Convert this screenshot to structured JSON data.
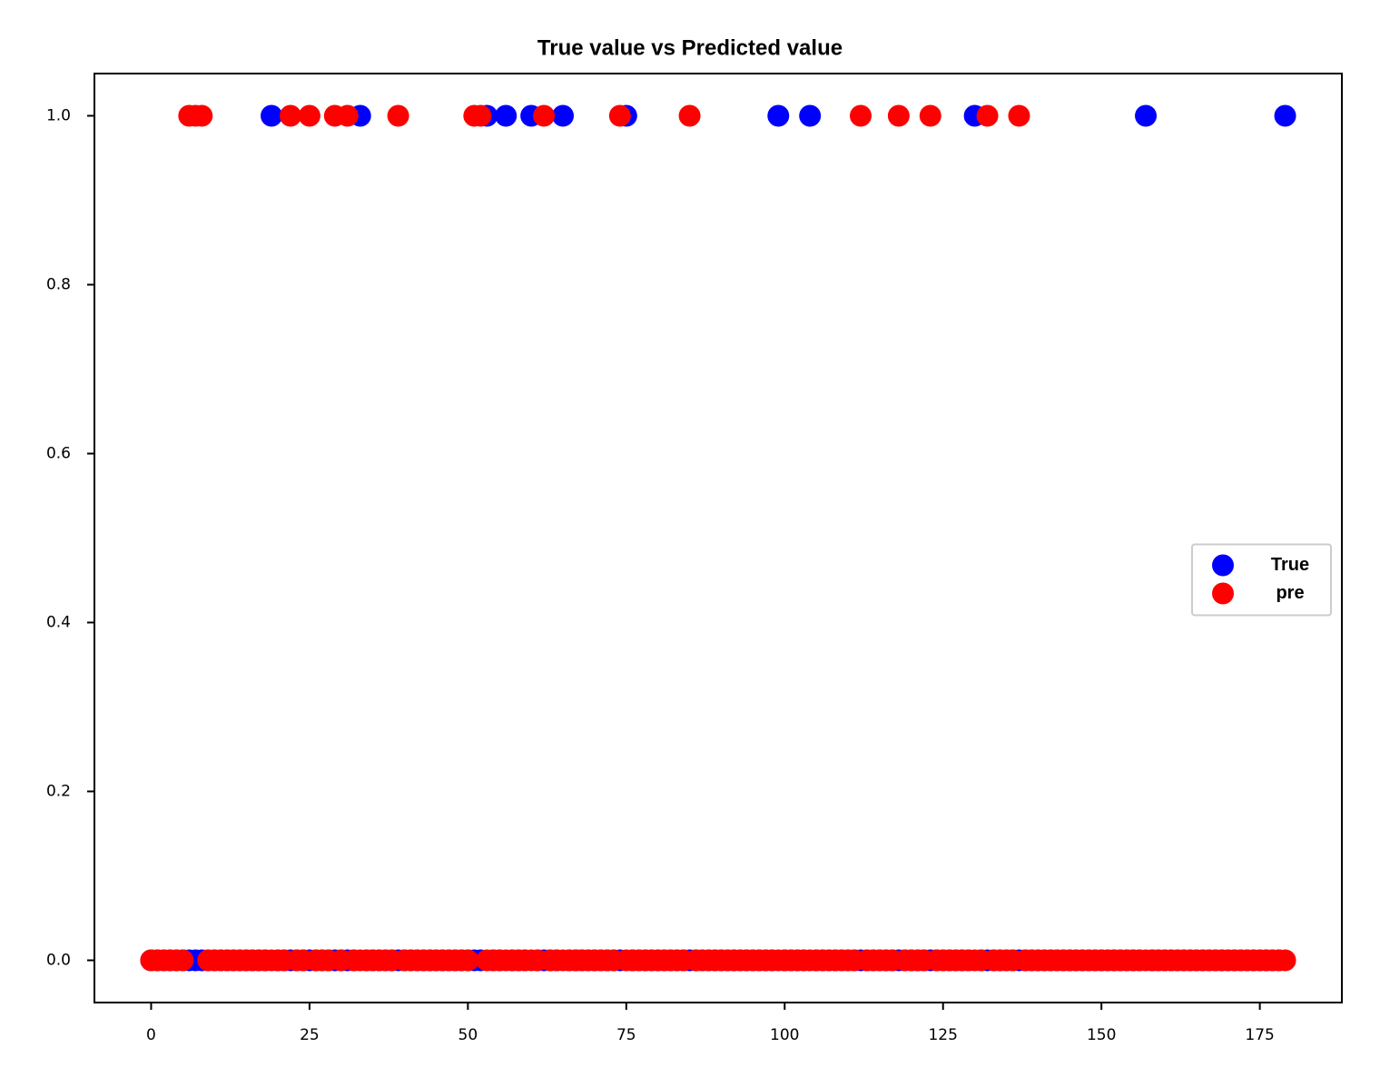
{
  "chart_data": {
    "type": "scatter",
    "title": "True value vs Predicted value",
    "x": [
      0,
      1,
      2,
      3,
      4,
      5,
      6,
      7,
      8,
      9,
      10,
      11,
      12,
      13,
      14,
      15,
      16,
      17,
      18,
      19,
      20,
      21,
      22,
      23,
      24,
      25,
      26,
      27,
      28,
      29,
      30,
      31,
      32,
      33,
      34,
      35,
      36,
      37,
      38,
      39,
      40,
      41,
      42,
      43,
      44,
      45,
      46,
      47,
      48,
      49,
      50,
      51,
      52,
      53,
      54,
      55,
      56,
      57,
      58,
      59,
      60,
      61,
      62,
      63,
      64,
      65,
      66,
      67,
      68,
      69,
      70,
      71,
      72,
      73,
      74,
      75,
      76,
      77,
      78,
      79,
      80,
      81,
      82,
      83,
      84,
      85,
      86,
      87,
      88,
      89,
      90,
      91,
      92,
      93,
      94,
      95,
      96,
      97,
      98,
      99,
      100,
      101,
      102,
      103,
      104,
      105,
      106,
      107,
      108,
      109,
      110,
      111,
      112,
      113,
      114,
      115,
      116,
      117,
      118,
      119,
      120,
      121,
      122,
      123,
      124,
      125,
      126,
      127,
      128,
      129,
      130,
      131,
      132,
      133,
      134,
      135,
      136,
      137,
      138,
      139,
      140,
      141,
      142,
      143,
      144,
      145,
      146,
      147,
      148,
      149,
      150,
      151,
      152,
      153,
      154,
      155,
      156,
      157,
      158,
      159,
      160,
      161,
      162,
      163,
      164,
      165,
      166,
      167,
      168,
      169,
      170,
      171,
      172,
      173,
      174,
      175,
      176,
      177,
      178,
      179
    ],
    "series": [
      {
        "name": "True",
        "color": "#0000ff",
        "values": [
          0,
          0,
          0,
          0,
          0,
          0,
          0,
          0,
          0,
          0,
          0,
          0,
          0,
          0,
          0,
          0,
          0,
          0,
          0,
          1,
          0,
          0,
          0,
          0,
          0,
          0,
          0,
          0,
          0,
          0,
          0,
          0,
          0,
          1,
          0,
          0,
          0,
          0,
          0,
          0,
          0,
          0,
          0,
          0,
          0,
          0,
          0,
          0,
          0,
          0,
          0,
          0,
          0,
          1,
          0,
          0,
          1,
          0,
          0,
          0,
          1,
          0,
          0,
          0,
          0,
          1,
          0,
          0,
          0,
          0,
          0,
          0,
          0,
          0,
          0,
          1,
          0,
          0,
          0,
          0,
          0,
          0,
          0,
          0,
          0,
          0,
          0,
          0,
          0,
          0,
          0,
          0,
          0,
          0,
          0,
          0,
          0,
          0,
          0,
          1,
          0,
          0,
          0,
          0,
          1,
          0,
          0,
          0,
          0,
          0,
          0,
          0,
          0,
          0,
          0,
          0,
          0,
          0,
          0,
          0,
          0,
          0,
          0,
          0,
          0,
          0,
          0,
          0,
          0,
          0,
          1,
          0,
          0,
          0,
          0,
          0,
          0,
          0,
          0,
          0,
          0,
          0,
          0,
          0,
          0,
          0,
          0,
          0,
          0,
          0,
          0,
          0,
          0,
          0,
          0,
          0,
          0,
          1,
          0,
          0,
          0,
          0,
          0,
          0,
          0,
          0,
          0,
          0,
          0,
          0,
          0,
          0,
          0,
          0,
          0,
          0,
          0,
          0,
          0,
          1
        ]
      },
      {
        "name": "pre",
        "color": "#ff0000",
        "values": [
          0,
          0,
          0,
          0,
          0,
          0,
          1,
          1,
          1,
          0,
          0,
          0,
          0,
          0,
          0,
          0,
          0,
          0,
          0,
          0,
          0,
          0,
          1,
          0,
          0,
          1,
          0,
          0,
          0,
          1,
          0,
          1,
          0,
          0,
          0,
          0,
          0,
          0,
          0,
          1,
          0,
          0,
          0,
          0,
          0,
          0,
          0,
          0,
          0,
          0,
          0,
          1,
          1,
          0,
          0,
          0,
          0,
          0,
          0,
          0,
          0,
          0,
          1,
          0,
          0,
          0,
          0,
          0,
          0,
          0,
          0,
          0,
          0,
          0,
          1,
          0,
          0,
          0,
          0,
          0,
          0,
          0,
          0,
          0,
          0,
          1,
          0,
          0,
          0,
          0,
          0,
          0,
          0,
          0,
          0,
          0,
          0,
          0,
          0,
          0,
          0,
          0,
          0,
          0,
          0,
          0,
          0,
          0,
          0,
          0,
          0,
          0,
          1,
          0,
          0,
          0,
          0,
          0,
          1,
          0,
          0,
          0,
          0,
          1,
          0,
          0,
          0,
          0,
          0,
          0,
          0,
          0,
          1,
          0,
          0,
          0,
          0,
          1,
          0,
          0,
          0,
          0,
          0,
          0,
          0,
          0,
          0,
          0,
          0,
          0,
          0,
          0,
          0,
          0,
          0,
          0,
          0,
          0,
          0,
          0,
          0,
          0,
          0,
          0,
          0,
          0,
          0,
          0,
          0,
          0,
          0,
          0,
          0,
          0,
          0,
          0,
          0,
          0,
          0,
          0
        ]
      }
    ],
    "xlim": [
      -8.95,
      187.95
    ],
    "xticks": [
      0,
      25,
      50,
      75,
      100,
      125,
      150,
      175
    ],
    "ylim": [
      -0.05,
      1.05
    ],
    "yticks": [
      {
        "value": 0,
        "label": "0.0"
      },
      0.2,
      0.4,
      0.6,
      0.8,
      {
        "value": 1,
        "label": "1.0"
      }
    ],
    "legend": "center right",
    "grid": false
  }
}
